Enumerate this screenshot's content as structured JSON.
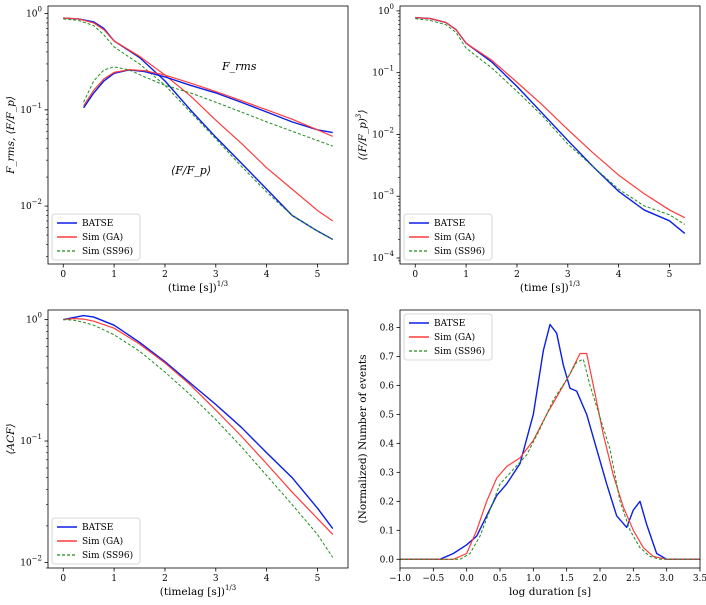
{
  "colors": {
    "batse": "#0a1ee6",
    "ga": "#ff3b3b",
    "ss96": "#1e8c1e"
  },
  "legend_labels": {
    "batse": "BATSE",
    "ga": "Sim (GA)",
    "ss96": "Sim (SS96)"
  },
  "chart_data": [
    {
      "type": "line",
      "panel": "top-left",
      "yscale": "log",
      "xlabel": "(time [s])^1/3",
      "ylabel": "F_rms,   ⟨F/F_p⟩",
      "xlim": [
        -0.3,
        5.6
      ],
      "ylim": [
        0.0025,
        1.2
      ],
      "xticks": [
        "0",
        "1",
        "2",
        "3",
        "4",
        "5"
      ],
      "yticks": [
        "10^-2",
        "10^-1",
        "10^0"
      ],
      "legend": "lower-left",
      "annotations": [
        "F_rms",
        "⟨F/F_p⟩"
      ],
      "series": [
        {
          "name": "BATSE",
          "key": "batse",
          "x": [
            0,
            0.3,
            0.6,
            0.8,
            1.0,
            1.5,
            2.0,
            2.5,
            3.0,
            3.5,
            4.0,
            4.5,
            5.0,
            5.3
          ],
          "y": [
            0.9,
            0.88,
            0.82,
            0.7,
            0.52,
            0.35,
            0.2,
            0.1,
            0.052,
            0.028,
            0.015,
            0.008,
            0.0055,
            0.0045
          ]
        },
        {
          "name": "Sim (GA)",
          "key": "ga",
          "x": [
            0,
            0.3,
            0.6,
            0.8,
            1.0,
            1.5,
            2.0,
            2.5,
            3.0,
            3.5,
            4.0,
            4.5,
            5.0,
            5.3
          ],
          "y": [
            0.9,
            0.88,
            0.8,
            0.68,
            0.52,
            0.36,
            0.23,
            0.14,
            0.078,
            0.045,
            0.025,
            0.015,
            0.009,
            0.007
          ]
        },
        {
          "name": "Sim (SS96)",
          "key": "ss96",
          "x": [
            0,
            0.3,
            0.6,
            0.8,
            1.0,
            1.5,
            2.0,
            2.5,
            3.0,
            3.5,
            4.0,
            4.5,
            5.0,
            5.3
          ],
          "y": [
            0.88,
            0.85,
            0.75,
            0.6,
            0.45,
            0.3,
            0.18,
            0.095,
            0.05,
            0.026,
            0.014,
            0.008,
            0.0055,
            0.0045
          ]
        },
        {
          "name": "BATSE",
          "key": "batse",
          "x": [
            0.4,
            0.6,
            0.8,
            1.0,
            1.3,
            1.6,
            2.0,
            2.5,
            3.0,
            3.5,
            4.0,
            4.5,
            5.0,
            5.3
          ],
          "y": [
            0.105,
            0.15,
            0.2,
            0.24,
            0.26,
            0.25,
            0.22,
            0.18,
            0.15,
            0.12,
            0.095,
            0.075,
            0.062,
            0.058
          ]
        },
        {
          "name": "Sim (GA)",
          "key": "ga",
          "x": [
            0.4,
            0.6,
            0.8,
            1.0,
            1.3,
            1.6,
            2.0,
            2.5,
            3.0,
            3.5,
            4.0,
            4.5,
            5.0,
            5.3
          ],
          "y": [
            0.11,
            0.16,
            0.21,
            0.245,
            0.262,
            0.255,
            0.23,
            0.19,
            0.155,
            0.125,
            0.1,
            0.08,
            0.062,
            0.053
          ]
        },
        {
          "name": "Sim (SS96)",
          "key": "ss96",
          "x": [
            0.4,
            0.6,
            0.8,
            1.0,
            1.3,
            1.6,
            2.0,
            2.5,
            3.0,
            3.5,
            4.0,
            4.5,
            5.0,
            5.3
          ],
          "y": [
            0.12,
            0.2,
            0.26,
            0.28,
            0.26,
            0.22,
            0.18,
            0.15,
            0.12,
            0.095,
            0.075,
            0.06,
            0.048,
            0.042
          ]
        }
      ]
    },
    {
      "type": "line",
      "panel": "top-right",
      "yscale": "log",
      "xlabel": "(time [s])^1/3",
      "ylabel": "⟨(F/F_p)^3⟩",
      "xlim": [
        -0.3,
        5.6
      ],
      "ylim": [
        8e-05,
        1.2
      ],
      "xticks": [
        "0",
        "1",
        "2",
        "3",
        "4",
        "5"
      ],
      "yticks": [
        "10^-4",
        "10^-3",
        "10^-2",
        "10^-1",
        "10^0"
      ],
      "legend": "lower-left",
      "series": [
        {
          "name": "BATSE",
          "key": "batse",
          "x": [
            0,
            0.3,
            0.6,
            0.8,
            1.0,
            1.5,
            2.0,
            2.5,
            3.0,
            3.5,
            4.0,
            4.5,
            5.0,
            5.3
          ],
          "y": [
            0.78,
            0.75,
            0.65,
            0.5,
            0.3,
            0.15,
            0.06,
            0.022,
            0.008,
            0.003,
            0.0012,
            0.0006,
            0.0004,
            0.00025
          ]
        },
        {
          "name": "Sim (GA)",
          "key": "ga",
          "x": [
            0,
            0.3,
            0.6,
            0.8,
            1.0,
            1.5,
            2.0,
            2.5,
            3.0,
            3.5,
            4.0,
            4.5,
            5.0,
            5.3
          ],
          "y": [
            0.78,
            0.75,
            0.65,
            0.5,
            0.3,
            0.16,
            0.07,
            0.03,
            0.012,
            0.005,
            0.0022,
            0.0011,
            0.0006,
            0.00045
          ]
        },
        {
          "name": "Sim (SS96)",
          "key": "ss96",
          "x": [
            0,
            0.3,
            0.6,
            0.8,
            1.0,
            1.5,
            2.0,
            2.5,
            3.0,
            3.5,
            4.0,
            4.5,
            5.0,
            5.3
          ],
          "y": [
            0.75,
            0.7,
            0.6,
            0.45,
            0.25,
            0.12,
            0.05,
            0.02,
            0.007,
            0.003,
            0.0013,
            0.0007,
            0.0005,
            0.00035
          ]
        }
      ]
    },
    {
      "type": "line",
      "panel": "bottom-left",
      "yscale": "log",
      "xlabel": "(timelag [s])^1/3",
      "ylabel": "⟨ACF⟩",
      "xlim": [
        -0.3,
        5.6
      ],
      "ylim": [
        0.009,
        1.2
      ],
      "xticks": [
        "0",
        "1",
        "2",
        "3",
        "4",
        "5"
      ],
      "yticks": [
        "10^-2",
        "10^-1",
        "10^0"
      ],
      "legend": "lower-left",
      "series": [
        {
          "name": "BATSE",
          "key": "batse",
          "x": [
            0,
            0.2,
            0.4,
            0.6,
            1.0,
            1.5,
            2.0,
            2.5,
            3.0,
            3.5,
            4.0,
            4.5,
            5.0,
            5.3
          ],
          "y": [
            1.0,
            1.04,
            1.08,
            1.05,
            0.9,
            0.65,
            0.45,
            0.3,
            0.2,
            0.13,
            0.08,
            0.05,
            0.028,
            0.019
          ]
        },
        {
          "name": "Sim (GA)",
          "key": "ga",
          "x": [
            0,
            0.2,
            0.4,
            0.6,
            1.0,
            1.5,
            2.0,
            2.5,
            3.0,
            3.5,
            4.0,
            4.5,
            5.0,
            5.3
          ],
          "y": [
            1.0,
            1.02,
            1.01,
            0.97,
            0.85,
            0.63,
            0.44,
            0.29,
            0.18,
            0.11,
            0.065,
            0.038,
            0.023,
            0.017
          ]
        },
        {
          "name": "Sim (SS96)",
          "key": "ss96",
          "x": [
            0,
            0.2,
            0.4,
            0.6,
            1.0,
            1.5,
            2.0,
            2.5,
            3.0,
            3.5,
            4.0,
            4.5,
            5.0,
            5.3
          ],
          "y": [
            1.0,
            0.99,
            0.95,
            0.9,
            0.75,
            0.55,
            0.37,
            0.24,
            0.15,
            0.09,
            0.052,
            0.03,
            0.017,
            0.011
          ]
        }
      ]
    },
    {
      "type": "line",
      "panel": "bottom-right",
      "yscale": "linear",
      "xlabel": "log duration [s]",
      "ylabel": "(Normalized) Number of events",
      "xlim": [
        -1.0,
        3.5
      ],
      "ylim": [
        -0.03,
        0.86
      ],
      "xticks": [
        "−1.0",
        "−0.5",
        "0.0",
        "0.5",
        "1.0",
        "1.5",
        "2.0",
        "2.5",
        "3.0",
        "3.5"
      ],
      "yticks": [
        "0.0",
        "0.1",
        "0.2",
        "0.3",
        "0.4",
        "0.5",
        "0.6",
        "0.7",
        "0.8"
      ],
      "legend": "upper-left",
      "series": [
        {
          "name": "BATSE",
          "key": "batse",
          "x": [
            -1.0,
            -0.4,
            -0.2,
            0.0,
            0.15,
            0.3,
            0.45,
            0.6,
            0.8,
            1.0,
            1.15,
            1.25,
            1.35,
            1.45,
            1.55,
            1.65,
            1.8,
            1.95,
            2.1,
            2.25,
            2.4,
            2.5,
            2.6,
            2.7,
            2.85,
            3.0,
            3.5
          ],
          "y": [
            0,
            0,
            0.02,
            0.05,
            0.08,
            0.15,
            0.22,
            0.26,
            0.33,
            0.5,
            0.72,
            0.81,
            0.78,
            0.67,
            0.59,
            0.58,
            0.5,
            0.38,
            0.26,
            0.15,
            0.11,
            0.17,
            0.2,
            0.12,
            0.02,
            0,
            0
          ]
        },
        {
          "name": "Sim (GA)",
          "key": "ga",
          "x": [
            -1.0,
            -0.2,
            0.0,
            0.15,
            0.3,
            0.45,
            0.6,
            0.8,
            1.0,
            1.2,
            1.4,
            1.55,
            1.7,
            1.8,
            1.9,
            2.05,
            2.2,
            2.35,
            2.5,
            2.65,
            2.8,
            3.0,
            3.5
          ],
          "y": [
            0,
            0,
            0.02,
            0.1,
            0.2,
            0.28,
            0.32,
            0.35,
            0.41,
            0.5,
            0.58,
            0.64,
            0.71,
            0.71,
            0.6,
            0.43,
            0.29,
            0.18,
            0.1,
            0.04,
            0.01,
            0,
            0
          ]
        },
        {
          "name": "Sim (SS96)",
          "key": "ss96",
          "x": [
            -1.0,
            -0.1,
            0.05,
            0.2,
            0.35,
            0.5,
            0.7,
            0.9,
            1.1,
            1.3,
            1.5,
            1.65,
            1.75,
            1.85,
            2.0,
            2.15,
            2.3,
            2.45,
            2.6,
            2.75,
            2.9,
            3.0,
            3.5
          ],
          "y": [
            0,
            0,
            0.02,
            0.08,
            0.17,
            0.26,
            0.31,
            0.36,
            0.45,
            0.55,
            0.62,
            0.68,
            0.69,
            0.6,
            0.49,
            0.38,
            0.2,
            0.1,
            0.04,
            0.01,
            0,
            0,
            0
          ]
        }
      ]
    }
  ]
}
